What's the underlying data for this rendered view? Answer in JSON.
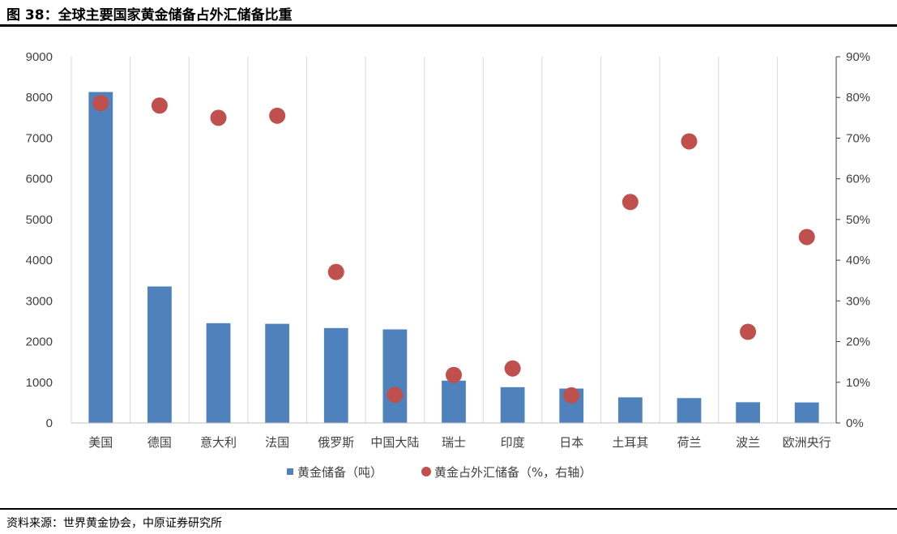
{
  "header": {
    "title": "图 38：全球主要国家黄金储备占外汇储备比重"
  },
  "footer": {
    "source": "资料来源：世界黄金协会，中原证券研究所"
  },
  "chart_data": {
    "type": "bar",
    "categories": [
      "美国",
      "德国",
      "意大利",
      "法国",
      "俄罗斯",
      "中国大陆",
      "瑞士",
      "印度",
      "日本",
      "土耳其",
      "荷兰",
      "波兰",
      "欧洲央行"
    ],
    "series": [
      {
        "name": "黄金储备（吨）",
        "type": "bar",
        "axis": "left",
        "color": "#4F81BD",
        "values": [
          8133,
          3355,
          2452,
          2437,
          2333,
          2300,
          1040,
          880,
          846,
          630,
          612,
          510,
          505
        ]
      },
      {
        "name": "黄金占外汇储备（%，右轴）",
        "type": "scatter",
        "axis": "right",
        "color": "#C0504D",
        "values": [
          78.6,
          78.0,
          75.0,
          75.5,
          37.1,
          6.9,
          11.8,
          13.4,
          6.8,
          54.3,
          69.2,
          22.4,
          45.7
        ]
      }
    ],
    "y_left": {
      "min": 0,
      "max": 9000,
      "step": 1000,
      "tick_labels": [
        "0",
        "1000",
        "2000",
        "3000",
        "4000",
        "5000",
        "6000",
        "7000",
        "8000",
        "9000"
      ]
    },
    "y_right": {
      "min": 0,
      "max": 90,
      "step": 10,
      "tick_labels": [
        "0%",
        "10%",
        "20%",
        "30%",
        "40%",
        "50%",
        "60%",
        "70%",
        "80%",
        "90%"
      ]
    },
    "grid": "vertical category separators",
    "legend_position": "bottom"
  }
}
